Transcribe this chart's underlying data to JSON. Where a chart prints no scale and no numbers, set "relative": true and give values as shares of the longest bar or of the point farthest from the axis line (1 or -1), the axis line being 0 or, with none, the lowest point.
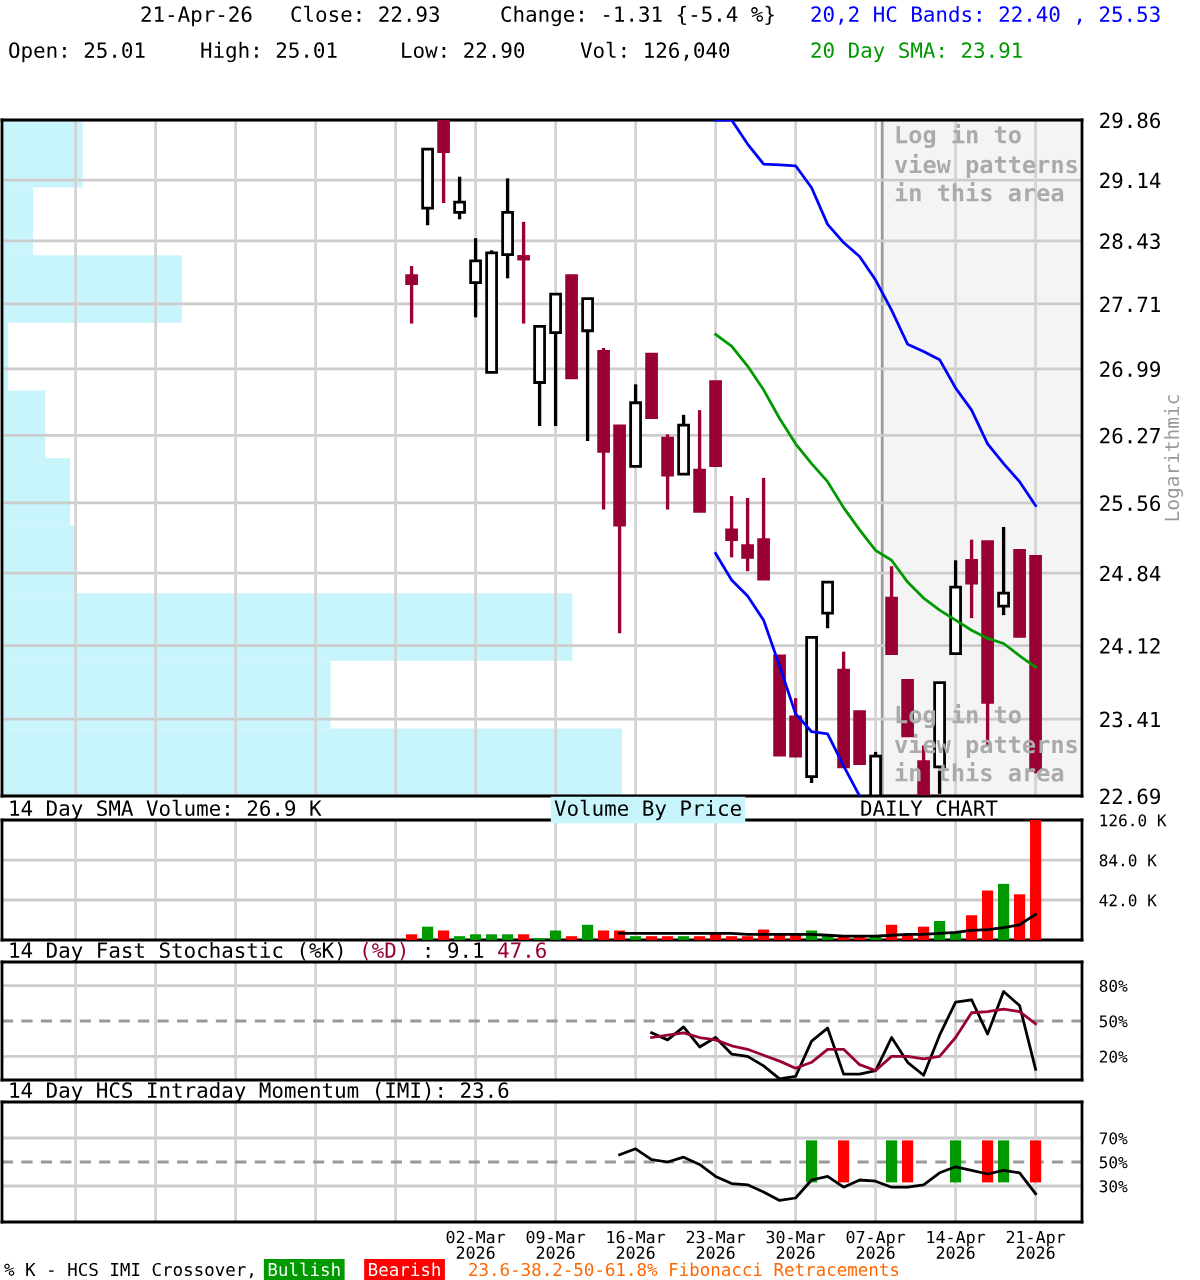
{
  "chart_data": [
    {
      "type": "candlestick",
      "log": true,
      "grid": true,
      "legend": "top right",
      "tick_labels": "y",
      "ylabel": "Logarithmic",
      "ylim": [
        22.69,
        29.86
      ],
      "yticks": [
        22.69,
        23.41,
        24.12,
        24.84,
        25.56,
        26.27,
        26.99,
        27.71,
        28.43,
        29.14,
        29.86
      ],
      "annotations": [
        "21-Apr-26",
        "Close: 22.93",
        "Change: -1.31 {-5.4 %}",
        "Open: 25.01",
        "High: 25.01",
        "Low: 22.90",
        "Vol: 126,040",
        "Log in to\nview patterns\nin this area",
        "Log in to\nview patterns\nin this area"
      ],
      "categories": [
        null,
        null,
        null,
        null,
        null,
        null,
        null,
        null,
        null,
        null,
        null,
        null,
        null,
        null,
        null,
        null,
        null,
        null,
        null,
        null,
        null,
        null,
        null,
        null,
        null,
        null,
        null,
        null,
        null,
        null,
        null,
        null,
        null,
        null,
        null,
        null,
        null,
        null,
        null,
        null,
        null,
        null,
        null,
        null,
        null,
        null,
        null,
        null,
        null,
        null,
        null,
        null,
        null,
        null,
        null,
        null,
        null,
        null,
        null,
        null,
        null,
        null,
        null,
        null,
        null
      ],
      "ohlc": [
        null,
        null,
        null,
        null,
        null,
        null,
        null,
        null,
        null,
        null,
        null,
        null,
        null,
        null,
        null,
        null,
        null,
        null,
        null,
        null,
        null,
        null,
        null,
        null,
        null,
        [
          28.03,
          28.14,
          27.49,
          27.94
        ],
        [
          28.81,
          29.51,
          28.61,
          29.51
        ],
        [
          29.86,
          29.86,
          28.87,
          29.48
        ],
        [
          28.76,
          29.18,
          28.68,
          28.88
        ],
        [
          27.95,
          28.46,
          27.56,
          28.2
        ],
        [
          26.95,
          28.32,
          26.95,
          28.29
        ],
        [
          28.27,
          29.16,
          28.0,
          28.76
        ],
        [
          28.25,
          28.65,
          27.49,
          28.22
        ],
        [
          26.84,
          27.46,
          26.37,
          27.46
        ],
        [
          27.39,
          27.82,
          26.37,
          27.82
        ],
        [
          28.03,
          28.03,
          26.89,
          26.89
        ],
        [
          27.41,
          27.77,
          26.21,
          27.77
        ],
        [
          27.18,
          27.22,
          25.49,
          26.1
        ],
        [
          26.37,
          26.37,
          24.24,
          25.33
        ],
        [
          25.94,
          26.82,
          25.94,
          26.62
        ],
        [
          27.15,
          27.15,
          26.46,
          26.46
        ],
        [
          26.24,
          26.28,
          25.49,
          25.85
        ],
        [
          25.86,
          26.49,
          25.86,
          26.38
        ],
        [
          25.9,
          26.54,
          25.47,
          25.47
        ],
        [
          26.85,
          26.85,
          25.95,
          25.95
        ],
        [
          25.28,
          25.63,
          25.0,
          25.18
        ],
        [
          25.12,
          25.61,
          24.86,
          25.0
        ],
        [
          25.18,
          25.82,
          24.78,
          24.78
        ],
        [
          24.02,
          24.02,
          23.07,
          23.07
        ],
        [
          23.43,
          23.61,
          23.06,
          23.06
        ],
        [
          22.87,
          24.2,
          22.81,
          24.2
        ],
        [
          24.44,
          24.75,
          24.29,
          24.75
        ],
        [
          23.88,
          24.06,
          22.96,
          22.96
        ],
        [
          23.48,
          23.48,
          22.99,
          22.99
        ],
        [
          22.69,
          23.1,
          22.69,
          23.06
        ],
        [
          24.59,
          24.91,
          24.04,
          24.04
        ],
        [
          23.78,
          23.78,
          23.25,
          23.25
        ],
        [
          23.01,
          23.16,
          22.71,
          22.71
        ],
        [
          22.96,
          23.76,
          22.71,
          23.76
        ],
        [
          24.04,
          24.97,
          24.04,
          24.7
        ],
        [
          24.97,
          25.18,
          24.39,
          24.74
        ],
        [
          25.16,
          25.16,
          23.15,
          23.57
        ],
        [
          24.51,
          25.31,
          24.42,
          24.64
        ],
        [
          25.07,
          25.07,
          24.21,
          24.21
        ],
        [
          25.01,
          25.01,
          22.9,
          22.93
        ]
      ],
      "colors": [
        null,
        null,
        null,
        null,
        null,
        null,
        null,
        null,
        null,
        null,
        null,
        null,
        null,
        null,
        null,
        null,
        null,
        null,
        null,
        null,
        null,
        null,
        null,
        null,
        null,
        "#990033",
        "#ffffff",
        "#990033",
        "#ffffff",
        "#ffffff",
        "#ffffff",
        "#ffffff",
        "#990033",
        "#ffffff",
        "#ffffff",
        "#990033",
        "#ffffff",
        "#990033",
        "#990033",
        "#ffffff",
        "#990033",
        "#990033",
        "#ffffff",
        "#990033",
        "#990033",
        "#990033",
        "#990033",
        "#990033",
        "#990033",
        "#990033",
        "#ffffff",
        "#ffffff",
        "#990033",
        "#990033",
        "#ffffff",
        "#990033",
        "#990033",
        "#990033",
        "#ffffff",
        "#ffffff",
        "#990033",
        "#990033",
        "#ffffff",
        "#990033",
        "#990033"
      ],
      "series": [
        {
          "type": "line",
          "name": "20,2 HC Bands: 22.40 , 25.53",
          "color": "#0000ff",
          "values": [
            null,
            null,
            null,
            null,
            null,
            null,
            null,
            null,
            null,
            null,
            null,
            null,
            null,
            null,
            null,
            null,
            null,
            null,
            null,
            null,
            null,
            null,
            null,
            null,
            null,
            null,
            null,
            null,
            null,
            null,
            null,
            null,
            null,
            null,
            null,
            null,
            null,
            null,
            null,
            null,
            null,
            null,
            null,
            null,
            29.86,
            29.86,
            29.57,
            29.33,
            29.32,
            29.31,
            29.05,
            28.62,
            28.41,
            28.25,
            27.98,
            27.64,
            27.26,
            27.18,
            27.09,
            26.78,
            26.54,
            26.18,
            25.97,
            25.78,
            25.53
          ]
        },
        {
          "type": "line",
          "color": "#0000ff",
          "values": [
            null,
            null,
            null,
            null,
            null,
            null,
            null,
            null,
            null,
            null,
            null,
            null,
            null,
            null,
            null,
            null,
            null,
            null,
            null,
            null,
            null,
            null,
            null,
            null,
            null,
            null,
            null,
            null,
            null,
            null,
            null,
            null,
            null,
            null,
            null,
            null,
            null,
            null,
            null,
            null,
            null,
            null,
            null,
            null,
            25.04,
            24.77,
            24.61,
            24.37,
            23.92,
            23.46,
            23.29,
            23.27,
            22.97,
            22.69,
            null,
            null,
            null,
            null,
            null,
            null,
            null,
            null,
            null,
            null,
            null
          ]
        },
        {
          "type": "line",
          "name": "20 Day SMA: 23.91",
          "color": "#009900",
          "values": [
            null,
            null,
            null,
            null,
            null,
            null,
            null,
            null,
            null,
            null,
            null,
            null,
            null,
            null,
            null,
            null,
            null,
            null,
            null,
            null,
            null,
            null,
            null,
            null,
            null,
            null,
            null,
            null,
            null,
            null,
            null,
            null,
            null,
            null,
            null,
            null,
            null,
            null,
            null,
            null,
            null,
            null,
            null,
            null,
            27.37,
            27.24,
            27.02,
            26.76,
            26.45,
            26.18,
            25.97,
            25.78,
            25.51,
            25.28,
            25.07,
            24.97,
            24.75,
            24.59,
            24.47,
            24.37,
            24.27,
            24.19,
            24.14,
            24.02,
            23.91
          ]
        }
      ]
    },
    {
      "type": "bar",
      "orientation": "horizontal",
      "relative": true,
      "title": "Volume By Price",
      "color": "#c8f4fc",
      "categories": [
        null,
        null,
        null,
        null,
        null,
        null,
        null,
        null,
        null,
        null
      ],
      "values": [
        0.13,
        0.05,
        0.29,
        0.01,
        0.07,
        0.11,
        0.12,
        0.92,
        0.53,
        1
      ]
    },
    {
      "type": "bar",
      "grid": true,
      "legend": "top left",
      "tick_labels": "y",
      "subtitle": "DAILY CHART",
      "ylim": [
        0,
        126040
      ],
      "yticks": [
        {
          "value": 42000,
          "label": "42.0 K"
        },
        {
          "value": 84000,
          "label": "84.0 K"
        },
        {
          "value": 126000,
          "label": "126.0 K"
        }
      ],
      "categories": [
        null,
        null,
        null,
        null,
        null,
        null,
        null,
        null,
        null,
        null,
        null,
        null,
        null,
        null,
        null,
        null,
        null,
        null,
        null,
        null,
        null,
        null,
        null,
        null,
        null,
        null,
        null,
        null,
        null,
        null,
        null,
        null,
        null,
        null,
        null,
        null,
        null,
        null,
        null,
        null,
        null,
        null,
        null,
        null,
        null,
        null,
        null,
        null,
        null,
        null,
        null,
        null,
        null,
        null,
        null,
        null,
        null,
        null,
        null,
        null,
        null,
        null,
        null,
        null,
        null
      ],
      "series": [
        {
          "type": "bar",
          "values": [
            null,
            null,
            null,
            null,
            null,
            null,
            null,
            null,
            null,
            null,
            null,
            null,
            null,
            null,
            null,
            null,
            null,
            null,
            null,
            null,
            null,
            null,
            null,
            null,
            null,
            6000,
            14000,
            10000,
            4000,
            6000,
            6000,
            6000,
            6000,
            2000,
            10000,
            4000,
            16000,
            10000,
            10000,
            4000,
            4000,
            4000,
            4000,
            4000,
            7000,
            4000,
            4000,
            11000,
            6000,
            6000,
            10000,
            4000,
            4000,
            4000,
            4000,
            16000,
            6000,
            14000,
            20000,
            8000,
            26000,
            52000,
            59000,
            48000,
            126040
          ],
          "colors": [
            null,
            null,
            null,
            null,
            null,
            null,
            null,
            null,
            null,
            null,
            null,
            null,
            null,
            null,
            null,
            null,
            null,
            null,
            null,
            null,
            null,
            null,
            null,
            null,
            null,
            "#ff0000",
            "#009900",
            "#ff0000",
            "#009900",
            "#009900",
            "#009900",
            "#009900",
            "#ff0000",
            "#009900",
            "#009900",
            "#ff0000",
            "#009900",
            "#ff0000",
            "#ff0000",
            "#009900",
            "#ff0000",
            "#ff0000",
            "#009900",
            "#ff0000",
            "#ff0000",
            "#ff0000",
            "#ff0000",
            "#ff0000",
            "#ff0000",
            "#ff0000",
            "#009900",
            "#009900",
            "#ff0000",
            "#ff0000",
            "#009900",
            "#ff0000",
            "#ff0000",
            "#ff0000",
            "#009900",
            "#009900",
            "#ff0000",
            "#ff0000",
            "#009900",
            "#ff0000",
            "#ff0000"
          ]
        },
        {
          "type": "line",
          "name": "14 Day SMA Volume: 26.9 K",
          "color": "#000000",
          "values": [
            null,
            null,
            null,
            null,
            null,
            null,
            null,
            null,
            null,
            null,
            null,
            null,
            null,
            null,
            null,
            null,
            null,
            null,
            null,
            null,
            null,
            null,
            null,
            null,
            null,
            null,
            null,
            null,
            null,
            null,
            null,
            null,
            null,
            null,
            null,
            null,
            null,
            null,
            7000,
            7000,
            7000,
            7000,
            7000,
            7000,
            7000,
            7000,
            6000,
            6000,
            6000,
            6000,
            6000,
            5000,
            4000,
            4000,
            4000,
            5000,
            6000,
            6000,
            7000,
            8000,
            10000,
            11000,
            13000,
            16000,
            26900
          ]
        }
      ]
    },
    {
      "type": "line",
      "grid": true,
      "legend": "top left",
      "tick_labels": "y",
      "title": "14 Day Fast Stochastic",
      "annotations": [
        ": 9.1",
        "47.6"
      ],
      "ylim": [
        0,
        100
      ],
      "yticks": [
        {
          "value": 20,
          "label": "20%"
        },
        {
          "value": 50,
          "label": "50%"
        },
        {
          "value": 80,
          "label": "80%"
        }
      ],
      "ref_lines": [
        {
          "axis": "y",
          "value": 50,
          "color": "#999999",
          "line_style": "dashed"
        }
      ],
      "categories": [
        null,
        null,
        null,
        null,
        null,
        null,
        null,
        null,
        null,
        null,
        null,
        null,
        null,
        null,
        null,
        null,
        null,
        null,
        null,
        null,
        null,
        null,
        null,
        null,
        null,
        null,
        null,
        null,
        null,
        null,
        null,
        null,
        null,
        null,
        null,
        null,
        null,
        null,
        null,
        null,
        null,
        null,
        null,
        null,
        null,
        null,
        null,
        null,
        null,
        null,
        null,
        null,
        null,
        null,
        null,
        null,
        null,
        null,
        null,
        null,
        null,
        null,
        null,
        null,
        null
      ],
      "series": [
        {
          "name": "(%K)",
          "color": "#000000",
          "values": [
            null,
            null,
            null,
            null,
            null,
            null,
            null,
            null,
            null,
            null,
            null,
            null,
            null,
            null,
            null,
            null,
            null,
            null,
            null,
            null,
            null,
            null,
            null,
            null,
            null,
            null,
            null,
            null,
            null,
            null,
            null,
            null,
            null,
            null,
            null,
            null,
            null,
            null,
            null,
            null,
            40,
            34,
            45,
            28,
            36,
            22,
            20,
            12,
            1,
            3,
            33,
            44,
            5,
            5,
            8,
            36,
            15,
            4,
            38,
            66,
            68,
            39,
            75,
            63,
            9.1
          ]
        },
        {
          "name": "(%D)",
          "color": "#990033",
          "values": [
            null,
            null,
            null,
            null,
            null,
            null,
            null,
            null,
            null,
            null,
            null,
            null,
            null,
            null,
            null,
            null,
            null,
            null,
            null,
            null,
            null,
            null,
            null,
            null,
            null,
            null,
            null,
            null,
            null,
            null,
            null,
            null,
            null,
            null,
            null,
            null,
            null,
            null,
            null,
            null,
            36,
            38,
            40,
            36,
            34,
            29,
            26,
            21,
            16,
            10,
            15,
            26,
            26,
            13,
            8,
            20,
            20,
            18,
            20,
            36,
            57,
            58,
            60,
            58,
            47.6
          ]
        }
      ]
    },
    {
      "type": "line",
      "grid": true,
      "legend": "bottom left",
      "legend_title": "% K - HCS IMI Crossover,",
      "title": "14 Day HCS Intraday Momentum (IMI): 23.6",
      "annotations": [
        "23.6-38.2-50-61.8% Fibonacci Retracements"
      ],
      "ylim": [
        0,
        100
      ],
      "yticks": [
        {
          "value": 30,
          "label": "30%"
        },
        {
          "value": 50,
          "label": "50%"
        },
        {
          "value": 70,
          "label": "70%"
        }
      ],
      "ref_lines": [
        {
          "axis": "y",
          "value": 50,
          "color": "#999999",
          "line_style": "dashed"
        }
      ],
      "categories": [
        null,
        null,
        null,
        null,
        null,
        null,
        null,
        null,
        null,
        null,
        null,
        null,
        null,
        null,
        null,
        null,
        null,
        null,
        null,
        null,
        null,
        null,
        null,
        null,
        null,
        null,
        null,
        null,
        null,
        "02-Mar\n2026",
        null,
        null,
        null,
        null,
        "09-Mar\n2026",
        null,
        null,
        null,
        null,
        "16-Mar\n2026",
        null,
        null,
        null,
        null,
        "23-Mar\n2026",
        null,
        null,
        null,
        null,
        "30-Mar\n2026",
        null,
        null,
        null,
        null,
        "07-Apr\n2026",
        null,
        null,
        null,
        null,
        "14-Apr\n2026",
        null,
        null,
        null,
        null,
        "21-Apr\n2026"
      ],
      "series": [
        {
          "type": "line",
          "color": "#000000",
          "values": [
            null,
            null,
            null,
            null,
            null,
            null,
            null,
            null,
            null,
            null,
            null,
            null,
            null,
            null,
            null,
            null,
            null,
            null,
            null,
            null,
            null,
            null,
            null,
            null,
            null,
            null,
            null,
            null,
            null,
            null,
            null,
            null,
            null,
            null,
            null,
            null,
            null,
            null,
            56,
            61,
            52,
            50,
            54,
            48,
            38,
            32,
            31,
            25,
            18,
            20,
            35,
            38,
            29,
            35,
            34,
            29,
            29,
            31,
            41,
            46,
            43,
            40,
            43,
            41,
            23.6
          ]
        },
        {
          "type": "bar",
          "name": "Bullish",
          "color": "#009900",
          "values": [
            null,
            null,
            null,
            null,
            null,
            null,
            null,
            null,
            null,
            null,
            null,
            null,
            null,
            null,
            null,
            null,
            null,
            null,
            null,
            null,
            null,
            null,
            null,
            null,
            null,
            null,
            null,
            null,
            null,
            null,
            null,
            null,
            null,
            null,
            null,
            null,
            null,
            null,
            null,
            null,
            null,
            null,
            null,
            null,
            null,
            null,
            null,
            null,
            null,
            null,
            35,
            null,
            null,
            null,
            null,
            35,
            null,
            null,
            null,
            35,
            null,
            null,
            35,
            null,
            null
          ],
          "base": [
            null,
            null,
            null,
            null,
            null,
            null,
            null,
            null,
            null,
            null,
            null,
            null,
            null,
            null,
            null,
            null,
            null,
            null,
            null,
            null,
            null,
            null,
            null,
            null,
            null,
            null,
            null,
            null,
            null,
            null,
            null,
            null,
            null,
            null,
            null,
            null,
            null,
            null,
            null,
            null,
            null,
            null,
            null,
            null,
            null,
            null,
            null,
            null,
            null,
            null,
            33,
            null,
            null,
            null,
            null,
            33,
            null,
            null,
            null,
            33,
            null,
            null,
            33,
            null,
            null
          ]
        },
        {
          "type": "bar",
          "name": "Bearish",
          "color": "#ff0000",
          "values": [
            null,
            null,
            null,
            null,
            null,
            null,
            null,
            null,
            null,
            null,
            null,
            null,
            null,
            null,
            null,
            null,
            null,
            null,
            null,
            null,
            null,
            null,
            null,
            null,
            null,
            null,
            null,
            null,
            null,
            null,
            null,
            null,
            null,
            null,
            null,
            null,
            null,
            null,
            null,
            null,
            null,
            null,
            null,
            null,
            null,
            null,
            null,
            null,
            null,
            null,
            null,
            null,
            35,
            null,
            null,
            null,
            35,
            null,
            null,
            null,
            null,
            35,
            null,
            null,
            35
          ],
          "base": [
            null,
            null,
            null,
            null,
            null,
            null,
            null,
            null,
            null,
            null,
            null,
            null,
            null,
            null,
            null,
            null,
            null,
            null,
            null,
            null,
            null,
            null,
            null,
            null,
            null,
            null,
            null,
            null,
            null,
            null,
            null,
            null,
            null,
            null,
            null,
            null,
            null,
            null,
            null,
            null,
            null,
            null,
            null,
            null,
            null,
            null,
            null,
            null,
            null,
            null,
            null,
            null,
            33,
            null,
            null,
            null,
            33,
            null,
            null,
            null,
            null,
            33,
            null,
            null,
            33
          ]
        }
      ]
    }
  ]
}
